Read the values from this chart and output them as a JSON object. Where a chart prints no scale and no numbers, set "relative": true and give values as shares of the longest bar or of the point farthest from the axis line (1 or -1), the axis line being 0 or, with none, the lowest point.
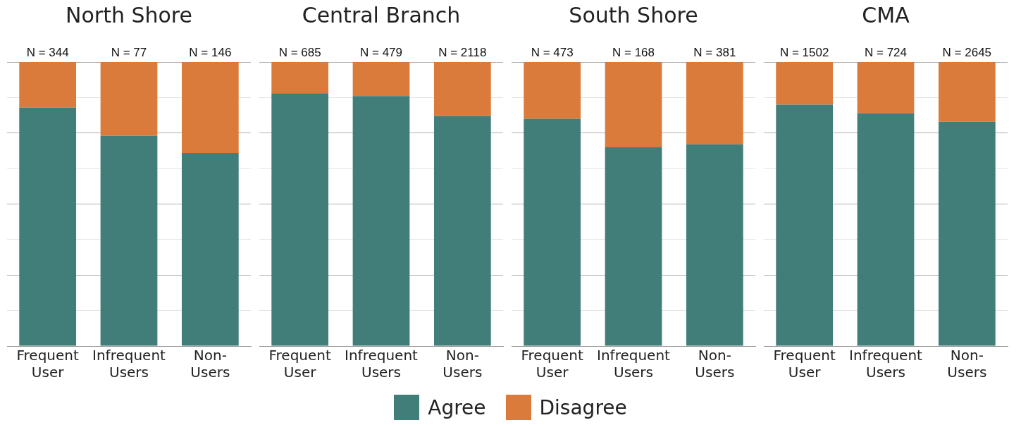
{
  "chart_data": [
    {
      "type": "bar",
      "title": "North Shore",
      "categories": [
        "Frequent User",
        "Infrequent Users",
        "Non-Users"
      ],
      "stacked": true,
      "relative": true,
      "grid": "y",
      "legend": "bottom",
      "series": [
        {
          "name": "Agree",
          "color": "#417d79",
          "values": [
            0.84,
            0.74,
            0.68
          ]
        },
        {
          "name": "Disagree",
          "color": "#db7b3b",
          "values": [
            0.16,
            0.26,
            0.32
          ]
        }
      ],
      "annotations": [
        "N = 344",
        "N = 77",
        "N = 146"
      ]
    },
    {
      "type": "bar",
      "title": "Central Branch",
      "categories": [
        "Frequent User",
        "Infrequent Users",
        "Non-Users"
      ],
      "stacked": true,
      "relative": true,
      "grid": "y",
      "legend": "bottom",
      "series": [
        {
          "name": "Agree",
          "color": "#417d79",
          "values": [
            0.89,
            0.88,
            0.81
          ]
        },
        {
          "name": "Disagree",
          "color": "#db7b3b",
          "values": [
            0.11,
            0.12,
            0.19
          ]
        }
      ],
      "annotations": [
        "N = 685",
        "N = 479",
        "N = 2118"
      ]
    },
    {
      "type": "bar",
      "title": "South Shore",
      "categories": [
        "Frequent User",
        "Infrequent Users",
        "Non-Users"
      ],
      "stacked": true,
      "relative": true,
      "grid": "y",
      "legend": "bottom",
      "series": [
        {
          "name": "Agree",
          "color": "#417d79",
          "values": [
            0.8,
            0.7,
            0.71
          ]
        },
        {
          "name": "Disagree",
          "color": "#db7b3b",
          "values": [
            0.2,
            0.3,
            0.29
          ]
        }
      ],
      "annotations": [
        "N = 473",
        "N = 168",
        "N = 381"
      ]
    },
    {
      "type": "bar",
      "title": "CMA",
      "categories": [
        "Frequent User",
        "Infrequent Users",
        "Non-Users"
      ],
      "stacked": true,
      "relative": true,
      "grid": "y",
      "legend": "bottom",
      "series": [
        {
          "name": "Agree",
          "color": "#417d79",
          "values": [
            0.85,
            0.82,
            0.79
          ]
        },
        {
          "name": "Disagree",
          "color": "#db7b3b",
          "values": [
            0.15,
            0.18,
            0.21
          ]
        }
      ],
      "annotations": [
        "N = 1502",
        "N = 724",
        "N = 2645"
      ]
    }
  ]
}
